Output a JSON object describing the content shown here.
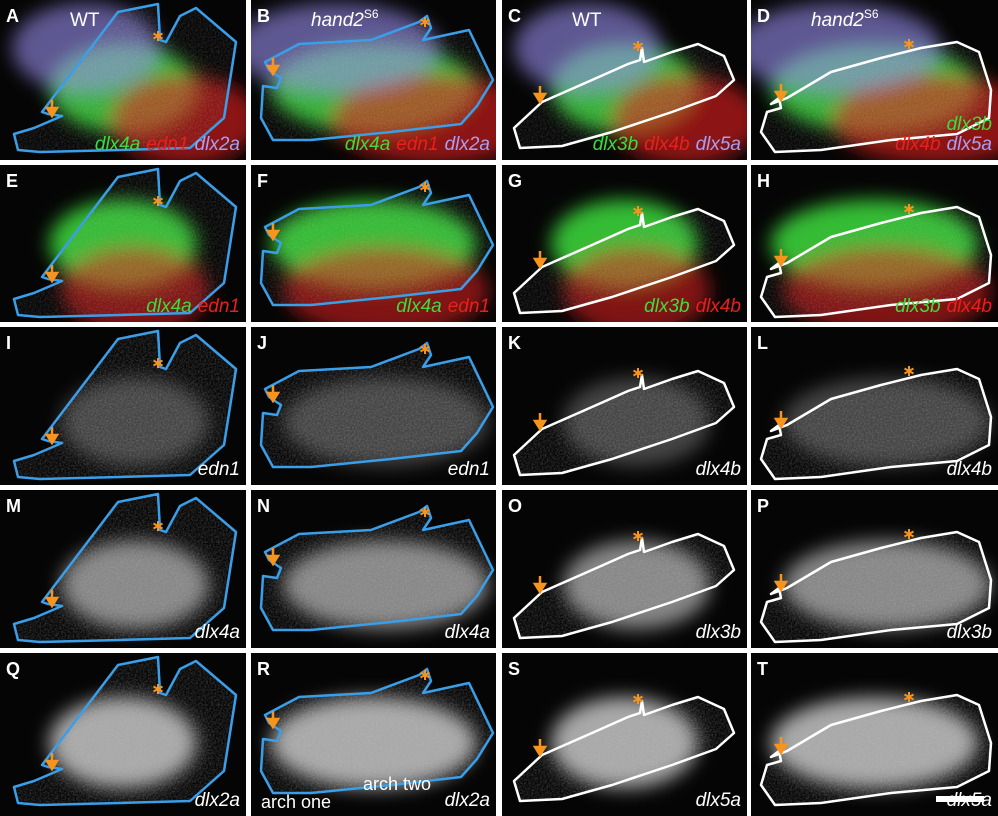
{
  "figure": {
    "panels": [
      {
        "letter": "A",
        "header": {
          "text": "WT"
        },
        "label_lines": [
          [
            {
              "text": "dlx4a",
              "color": "#3ddc3d"
            },
            {
              "text": "edn1",
              "color": "#e8201c"
            },
            {
              "text": "dlx2a",
              "color": "#a89ff2"
            }
          ]
        ]
      },
      {
        "letter": "B",
        "header": {
          "text": "hand2",
          "sup": "S6"
        },
        "label_lines": [
          [
            {
              "text": "dlx4a",
              "color": "#3ddc3d"
            },
            {
              "text": "edn1",
              "color": "#e8201c"
            },
            {
              "text": "dlx2a",
              "color": "#a89ff2"
            }
          ]
        ]
      },
      {
        "letter": "C",
        "header": {
          "text": "WT"
        },
        "label_lines": [
          [
            {
              "text": "dlx3b",
              "color": "#3ddc3d"
            },
            {
              "text": "dlx4b",
              "color": "#e8201c"
            },
            {
              "text": "dlx5a",
              "color": "#a89ff2"
            }
          ]
        ]
      },
      {
        "letter": "D",
        "header": {
          "text": "hand2",
          "sup": "S6"
        },
        "label_lines": [
          [
            {
              "text": "dlx3b",
              "color": "#3ddc3d"
            }
          ],
          [
            {
              "text": "dlx4b",
              "color": "#e8201c"
            },
            {
              "text": "dlx5a",
              "color": "#a89ff2"
            }
          ]
        ]
      },
      {
        "letter": "E",
        "label_lines": [
          [
            {
              "text": "dlx4a",
              "color": "#3ddc3d"
            },
            {
              "text": "edn1",
              "color": "#e8201c"
            }
          ]
        ]
      },
      {
        "letter": "F",
        "label_lines": [
          [
            {
              "text": "dlx4a",
              "color": "#3ddc3d"
            },
            {
              "text": "edn1",
              "color": "#e8201c"
            }
          ]
        ]
      },
      {
        "letter": "G",
        "label_lines": [
          [
            {
              "text": "dlx3b",
              "color": "#3ddc3d"
            },
            {
              "text": "dlx4b",
              "color": "#e8201c"
            }
          ]
        ]
      },
      {
        "letter": "H",
        "label_lines": [
          [
            {
              "text": "dlx3b",
              "color": "#3ddc3d"
            },
            {
              "text": "dlx4b",
              "color": "#e8201c"
            }
          ]
        ]
      },
      {
        "letter": "I",
        "label_lines": [
          [
            {
              "text": "edn1",
              "color": "#ffffff"
            }
          ]
        ]
      },
      {
        "letter": "J",
        "label_lines": [
          [
            {
              "text": "edn1",
              "color": "#ffffff"
            }
          ]
        ]
      },
      {
        "letter": "K",
        "label_lines": [
          [
            {
              "text": "dlx4b",
              "color": "#ffffff"
            }
          ]
        ]
      },
      {
        "letter": "L",
        "label_lines": [
          [
            {
              "text": "dlx4b",
              "color": "#ffffff"
            }
          ]
        ]
      },
      {
        "letter": "M",
        "label_lines": [
          [
            {
              "text": "dlx4a",
              "color": "#ffffff"
            }
          ]
        ]
      },
      {
        "letter": "N",
        "label_lines": [
          [
            {
              "text": "dlx4a",
              "color": "#ffffff"
            }
          ]
        ]
      },
      {
        "letter": "O",
        "label_lines": [
          [
            {
              "text": "dlx3b",
              "color": "#ffffff"
            }
          ]
        ]
      },
      {
        "letter": "P",
        "label_lines": [
          [
            {
              "text": "dlx3b",
              "color": "#ffffff"
            }
          ]
        ]
      },
      {
        "letter": "Q",
        "label_lines": [
          [
            {
              "text": "dlx2a",
              "color": "#ffffff"
            }
          ]
        ]
      },
      {
        "letter": "R",
        "label_lines": [
          [
            {
              "text": "dlx2a",
              "color": "#ffffff"
            }
          ]
        ],
        "notes": [
          {
            "text": "arch one"
          },
          {
            "text": "arch two"
          }
        ]
      },
      {
        "letter": "S",
        "label_lines": [
          [
            {
              "text": "dlx5a",
              "color": "#ffffff"
            }
          ]
        ]
      },
      {
        "letter": "T",
        "label_lines": [
          [
            {
              "text": "dlx5a",
              "color": "#ffffff"
            }
          ]
        ]
      }
    ]
  }
}
